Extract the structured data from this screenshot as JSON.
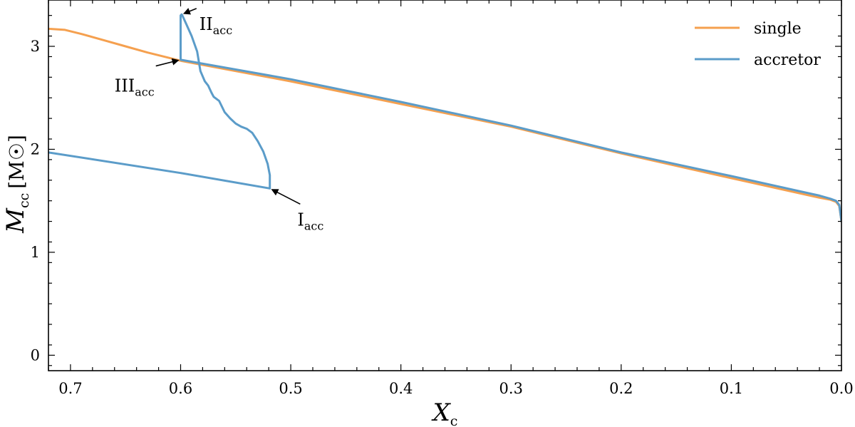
{
  "chart_data": {
    "type": "line",
    "xlabel": "X",
    "xlabel_sub": "c",
    "ylabel": "M",
    "ylabel_sub": "cc",
    "ylabel_unit": "[M☉]",
    "xlim": [
      0.72,
      0.0
    ],
    "ylim": [
      -0.15,
      3.45
    ],
    "x_reversed": true,
    "grid": false,
    "legend_position": "top-right",
    "xticks": [
      0.7,
      0.6,
      0.5,
      0.4,
      0.3,
      0.2,
      0.1,
      0.0
    ],
    "xtick_labels": [
      "0.7",
      "0.6",
      "0.5",
      "0.4",
      "0.3",
      "0.2",
      "0.1",
      "0.0"
    ],
    "yticks": [
      0,
      1,
      2,
      3
    ],
    "ytick_labels": [
      "0",
      "1",
      "2",
      "3"
    ],
    "series": [
      {
        "name": "single",
        "color": "#f5a04f",
        "points": [
          [
            0.72,
            3.17
          ],
          [
            0.705,
            3.16
          ],
          [
            0.69,
            3.12
          ],
          [
            0.67,
            3.06
          ],
          [
            0.65,
            3.0
          ],
          [
            0.63,
            2.94
          ],
          [
            0.6,
            2.86
          ],
          [
            0.5,
            2.66
          ],
          [
            0.4,
            2.44
          ],
          [
            0.3,
            2.22
          ],
          [
            0.2,
            1.96
          ],
          [
            0.1,
            1.72
          ],
          [
            0.02,
            1.53
          ],
          [
            0.01,
            1.51
          ],
          [
            0.005,
            1.49
          ],
          [
            0.002,
            1.45
          ],
          [
            0.0,
            1.3
          ]
        ]
      },
      {
        "name": "accretor",
        "color": "#5b9cc9",
        "points": [
          [
            0.72,
            1.97
          ],
          [
            0.6,
            1.77
          ],
          [
            0.519,
            1.62
          ],
          [
            0.519,
            1.75
          ],
          [
            0.521,
            1.86
          ],
          [
            0.525,
            1.98
          ],
          [
            0.53,
            2.08
          ],
          [
            0.535,
            2.16
          ],
          [
            0.54,
            2.2
          ],
          [
            0.545,
            2.22
          ],
          [
            0.55,
            2.25
          ],
          [
            0.555,
            2.3
          ],
          [
            0.56,
            2.36
          ],
          [
            0.565,
            2.47
          ],
          [
            0.57,
            2.51
          ],
          [
            0.572,
            2.55
          ],
          [
            0.575,
            2.62
          ],
          [
            0.578,
            2.66
          ],
          [
            0.582,
            2.76
          ],
          [
            0.585,
            2.95
          ],
          [
            0.59,
            3.1
          ],
          [
            0.595,
            3.22
          ],
          [
            0.598,
            3.29
          ],
          [
            0.599,
            3.31
          ],
          [
            0.6,
            3.3
          ],
          [
            0.6,
            2.87
          ],
          [
            0.5,
            2.68
          ],
          [
            0.4,
            2.46
          ],
          [
            0.3,
            2.23
          ],
          [
            0.2,
            1.97
          ],
          [
            0.1,
            1.74
          ],
          [
            0.02,
            1.55
          ],
          [
            0.01,
            1.52
          ],
          [
            0.005,
            1.5
          ],
          [
            0.002,
            1.46
          ],
          [
            0.0,
            1.3
          ]
        ]
      }
    ],
    "annotations": [
      {
        "text": "II",
        "sub": "acc",
        "arrow_to": [
          0.599,
          3.31
        ],
        "text_at": [
          0.583,
          3.16
        ],
        "anchor": "start"
      },
      {
        "text": "III",
        "sub": "acc",
        "arrow_to": [
          0.6,
          2.87
        ],
        "text_at": [
          0.66,
          2.56
        ],
        "anchor": "start"
      },
      {
        "text": "I",
        "sub": "acc",
        "arrow_to": [
          0.519,
          1.62
        ],
        "text_at": [
          0.494,
          1.26
        ],
        "anchor": "start"
      }
    ]
  }
}
